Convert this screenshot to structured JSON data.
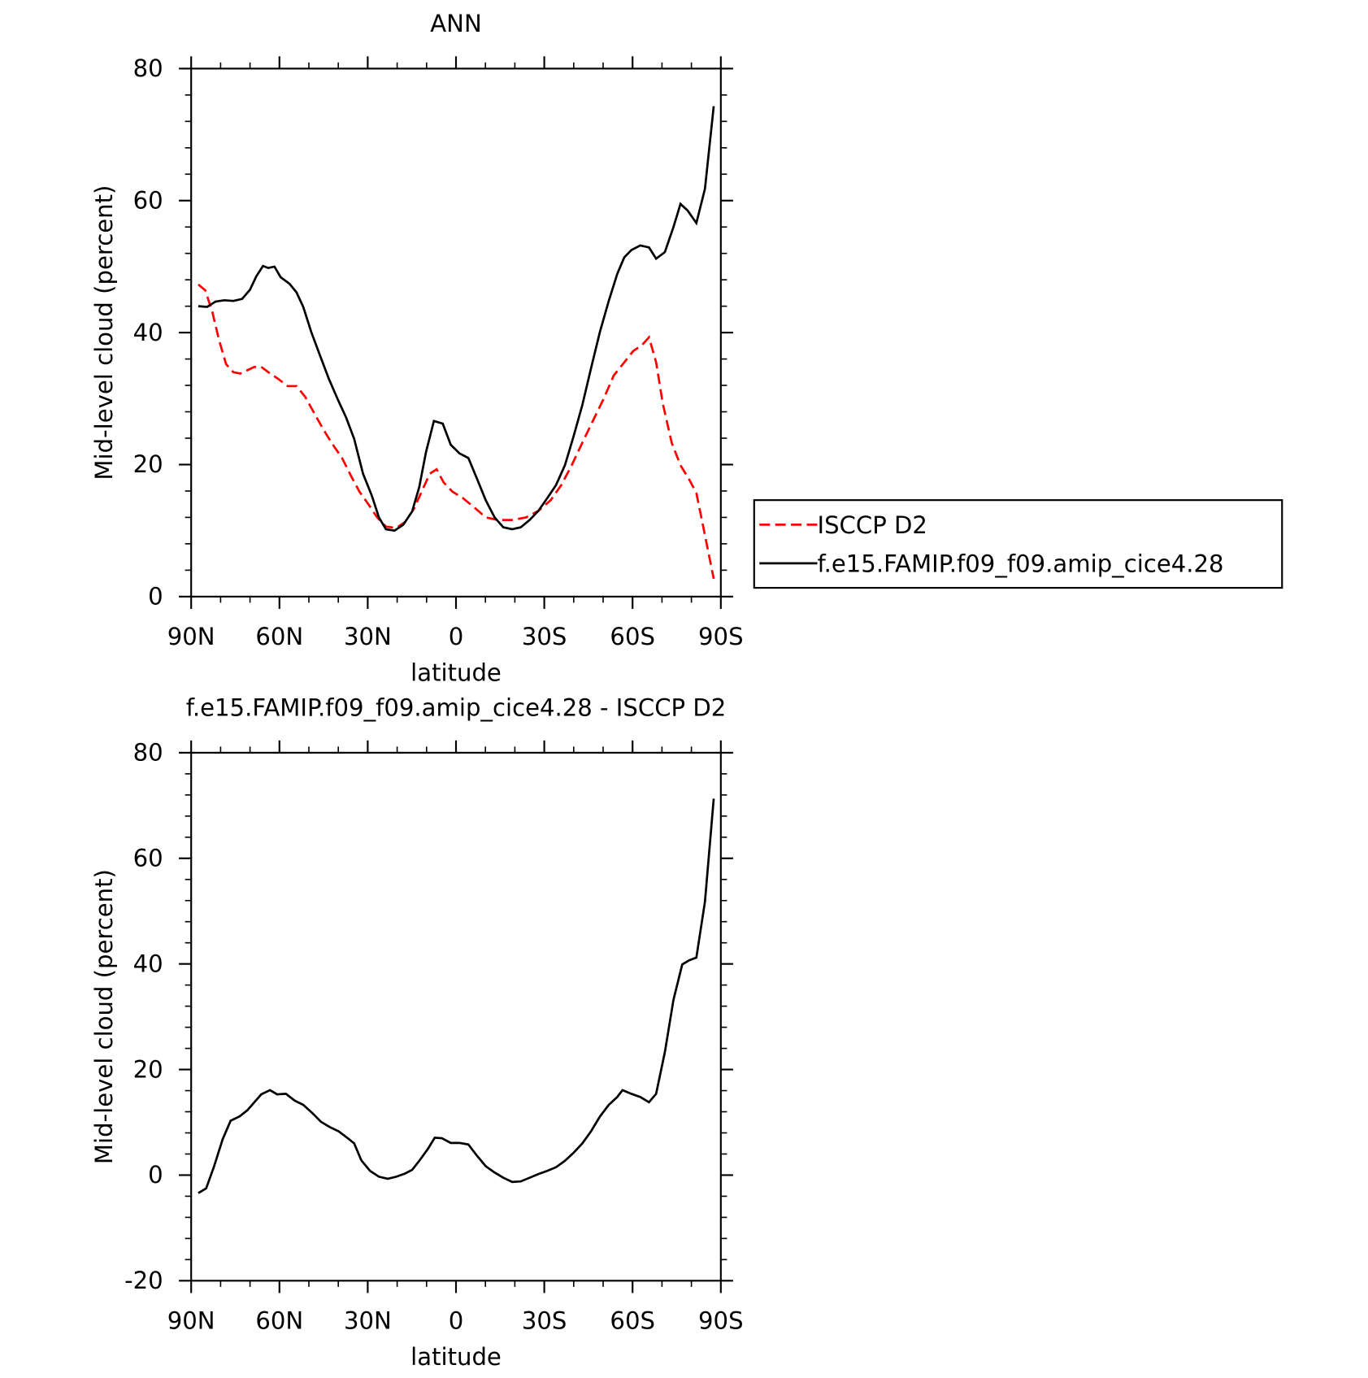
{
  "chart_data": [
    {
      "type": "line",
      "title": "ANN",
      "xlabel": "latitude",
      "ylabel": "Mid-level cloud (percent)",
      "xlim": [
        90,
        -90
      ],
      "xticks": [
        {
          "value": 90,
          "label": "90N"
        },
        {
          "value": 60,
          "label": "60N"
        },
        {
          "value": 30,
          "label": "30N"
        },
        0,
        {
          "value": -30,
          "label": "30S"
        },
        {
          "value": -60,
          "label": "60S"
        },
        {
          "value": -90,
          "label": "90S"
        }
      ],
      "ylim": [
        0,
        80
      ],
      "yticks": [
        0,
        20,
        40,
        60,
        80
      ],
      "legend": "right",
      "series": [
        {
          "name": "ISCCP D2",
          "color": "#ff0000",
          "dash": true,
          "x": [
            87.6,
            85.2,
            82.8,
            80.5,
            78.1,
            75.7,
            73.3,
            70.9,
            68.5,
            66.2,
            63.8,
            60.8,
            57.2,
            54.2,
            51.3,
            48.3,
            45.3,
            42.3,
            38.7,
            35.7,
            32.8,
            29.8,
            26.8,
            23.8,
            20.3,
            17.3,
            14.3,
            11.9,
            8.9,
            6.6,
            4.2,
            1.2,
            -2.4,
            -6.0,
            -10.1,
            -14.3,
            -19.1,
            -23.8,
            -28.0,
            -32.2,
            -35.8,
            -39.3,
            -42.9,
            -46.5,
            -50.1,
            -53.6,
            -57.2,
            -60.2,
            -63.2,
            -65.6,
            -68.0,
            -70.3,
            -73.3,
            -76.3,
            -79.3,
            -81.7,
            -84.0,
            -87.6
          ],
          "values": [
            47.3,
            46.4,
            43.1,
            38.8,
            35.2,
            34.0,
            33.8,
            34.3,
            34.8,
            34.8,
            34.0,
            33.1,
            31.9,
            31.9,
            30.3,
            27.9,
            25.5,
            23.3,
            21.0,
            18.3,
            15.9,
            14.0,
            12.0,
            10.6,
            10.4,
            11.3,
            13.3,
            15.7,
            18.6,
            19.3,
            17.3,
            15.9,
            14.9,
            13.6,
            12.0,
            11.6,
            11.6,
            12.0,
            13.0,
            14.6,
            16.9,
            19.9,
            23.3,
            26.6,
            29.9,
            33.5,
            35.5,
            37.2,
            38.1,
            39.3,
            35.5,
            29.2,
            23.3,
            19.9,
            17.7,
            15.7,
            10.6,
            2.7
          ]
        },
        {
          "name": "f.e15.FAMIP.f09_f09.amip_cice4.28",
          "color": "#000000",
          "dash": false,
          "x": [
            87.6,
            84.6,
            81.7,
            78.7,
            75.7,
            72.7,
            70.0,
            67.9,
            65.6,
            63.8,
            61.7,
            59.6,
            56.6,
            54.2,
            51.9,
            49.2,
            46.2,
            43.2,
            40.2,
            37.3,
            34.6,
            31.6,
            28.6,
            26.2,
            23.8,
            20.9,
            17.9,
            14.9,
            12.5,
            10.2,
            7.5,
            4.5,
            1.8,
            -1.2,
            -4.2,
            -7.1,
            -10.1,
            -13.1,
            -16.1,
            -19.1,
            -22.0,
            -25.0,
            -28.0,
            -31.0,
            -34.0,
            -37.0,
            -39.9,
            -42.9,
            -45.9,
            -48.9,
            -51.9,
            -54.8,
            -57.2,
            -59.6,
            -62.6,
            -65.6,
            -68.0,
            -71.0,
            -73.9,
            -76.3,
            -78.7,
            -81.7,
            -84.6,
            -87.6
          ],
          "values": [
            44.0,
            43.9,
            44.7,
            44.9,
            44.8,
            45.1,
            46.5,
            48.5,
            50.1,
            49.8,
            50.0,
            48.4,
            47.4,
            46.1,
            43.9,
            40.1,
            36.5,
            33.0,
            29.9,
            27.1,
            23.9,
            18.6,
            15.3,
            12.0,
            10.2,
            10.0,
            10.9,
            12.9,
            16.6,
            21.9,
            26.6,
            26.2,
            23.0,
            21.7,
            21.0,
            17.9,
            14.6,
            12.0,
            10.5,
            10.2,
            10.5,
            11.6,
            13.0,
            14.9,
            16.9,
            19.9,
            24.2,
            29.0,
            34.6,
            40.1,
            44.8,
            48.9,
            51.4,
            52.5,
            53.2,
            52.9,
            51.2,
            52.2,
            56.0,
            59.5,
            58.5,
            56.6,
            61.8,
            74.3
          ]
        }
      ]
    },
    {
      "type": "line",
      "title": "f.e15.FAMIP.f09_f09.amip_cice4.28 - ISCCP D2",
      "xlabel": "latitude",
      "ylabel": "Mid-level cloud (percent)",
      "xlim": [
        90,
        -90
      ],
      "xticks": [
        {
          "value": 90,
          "label": "90N"
        },
        {
          "value": 60,
          "label": "60N"
        },
        {
          "value": 30,
          "label": "30N"
        },
        0,
        {
          "value": -30,
          "label": "30S"
        },
        {
          "value": -60,
          "label": "60S"
        },
        {
          "value": -90,
          "label": "90S"
        }
      ],
      "ylim": [
        -20,
        80
      ],
      "yticks": [
        -20,
        0,
        20,
        40,
        60,
        80
      ],
      "series": [
        {
          "color": "#000000",
          "dash": false,
          "x": [
            87.6,
            84.9,
            82.3,
            79.3,
            76.6,
            73.6,
            70.9,
            68.5,
            66.2,
            63.2,
            60.8,
            57.8,
            54.8,
            51.9,
            48.9,
            45.9,
            42.9,
            39.9,
            37.0,
            34.6,
            32.2,
            29.2,
            26.2,
            23.2,
            20.3,
            17.3,
            14.9,
            12.5,
            9.5,
            7.2,
            4.8,
            1.8,
            -1.2,
            -4.2,
            -7.1,
            -10.1,
            -13.1,
            -16.1,
            -19.1,
            -22.0,
            -25.0,
            -28.0,
            -31.0,
            -34.0,
            -37.0,
            -39.9,
            -42.9,
            -45.9,
            -48.9,
            -51.9,
            -54.8,
            -56.6,
            -59.6,
            -62.6,
            -65.6,
            -68.0,
            -71.0,
            -73.9,
            -76.9,
            -79.3,
            -81.7,
            -84.6,
            -87.6
          ],
          "values": [
            -3.4,
            -2.5,
            1.5,
            6.8,
            10.3,
            11.1,
            12.3,
            13.8,
            15.3,
            16.1,
            15.3,
            15.4,
            14.1,
            13.3,
            11.8,
            10.1,
            9.1,
            8.3,
            7.1,
            6.0,
            2.8,
            0.8,
            -0.3,
            -0.7,
            -0.3,
            0.3,
            1.0,
            2.7,
            5.0,
            7.1,
            7.0,
            6.1,
            6.1,
            5.8,
            3.7,
            1.7,
            0.5,
            -0.5,
            -1.3,
            -1.2,
            -0.5,
            0.2,
            0.8,
            1.5,
            2.7,
            4.2,
            6.0,
            8.3,
            11.1,
            13.3,
            14.8,
            16.1,
            15.4,
            14.8,
            13.8,
            15.4,
            23.3,
            33.2,
            39.9,
            40.7,
            41.2,
            51.8,
            71.3
          ]
        }
      ]
    }
  ]
}
